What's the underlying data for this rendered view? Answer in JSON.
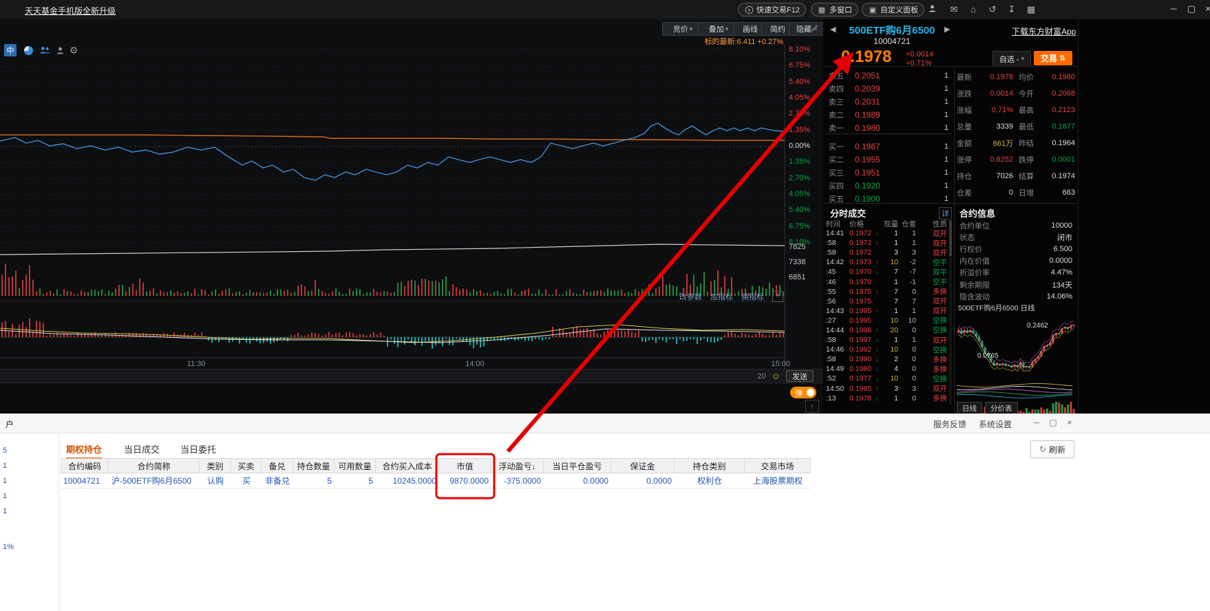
{
  "icons": {
    "close_small": "×",
    "gear": "⚙",
    "mail": "✉",
    "home": "⌂",
    "undo": "↺",
    "download": "↧",
    "smiley": "☺",
    "top": "↑",
    "caret": "▾",
    "prev": "◀",
    "next": "▶",
    "grid": "▦",
    "panel": "▣",
    "minimize": "─",
    "restore": "▢",
    "close": "×",
    "swap": "⇅",
    "refresh": "↻",
    "fullscreen": "⤢",
    "more": "»"
  },
  "titlebar": {
    "promo_link": "天天基金手机版全新升级",
    "quick_trade": "快速交易F12",
    "multi_window": "多窗口",
    "custom_panel": "自定义面板"
  },
  "chart_toolbar": {
    "bid": "竞价",
    "overlay": "叠加",
    "draw": "画线",
    "brief": "简约",
    "hide": "隐藏",
    "underlying": "标的最新:6.411 +0.27%",
    "zhong": "中"
  },
  "chart": {
    "pct_axis": [
      "8.10%",
      "6.75%",
      "5.40%",
      "4.05%",
      "2.70%",
      "1.35%",
      "0.00%",
      "1.35%",
      "2.70%",
      "4.05%",
      "5.40%",
      "6.75%",
      "8.10%"
    ],
    "vol_axis": [
      "7825",
      "7338",
      "6851"
    ],
    "time_labels": [
      "11:30",
      "14:00",
      "15:00"
    ],
    "indicator_links": [
      "改参数",
      "加指标",
      "换指标"
    ],
    "chat_count": "20",
    "send_label": "发送",
    "danmu_label": "弹",
    "series": {
      "underlying_change": [
        [
          0,
          168
        ],
        [
          100,
          168
        ],
        [
          200,
          168
        ],
        [
          300,
          169
        ],
        [
          400,
          170
        ],
        [
          470,
          171
        ],
        [
          480,
          173
        ],
        [
          560,
          173
        ],
        [
          640,
          173
        ],
        [
          720,
          174
        ],
        [
          800,
          174
        ],
        [
          880,
          175
        ],
        [
          960,
          175
        ],
        [
          1040,
          176
        ],
        [
          1140,
          176
        ]
      ],
      "option_price": [
        [
          0,
          177
        ],
        [
          22,
          172
        ],
        [
          38,
          180
        ],
        [
          55,
          176
        ],
        [
          72,
          184
        ],
        [
          92,
          181
        ],
        [
          112,
          188
        ],
        [
          132,
          184
        ],
        [
          152,
          190
        ],
        [
          172,
          186
        ],
        [
          192,
          193
        ],
        [
          212,
          190
        ],
        [
          232,
          196
        ],
        [
          252,
          193
        ],
        [
          272,
          186
        ],
        [
          292,
          190
        ],
        [
          312,
          186
        ],
        [
          332,
          200
        ],
        [
          352,
          212
        ],
        [
          366,
          206
        ],
        [
          382,
          216
        ],
        [
          396,
          212
        ],
        [
          412,
          222
        ],
        [
          426,
          218
        ],
        [
          442,
          230
        ],
        [
          458,
          234
        ],
        [
          472,
          226
        ],
        [
          486,
          230
        ],
        [
          502,
          222
        ],
        [
          516,
          226
        ],
        [
          532,
          218
        ],
        [
          546,
          222
        ],
        [
          562,
          226
        ],
        [
          576,
          222
        ],
        [
          592,
          212
        ],
        [
          606,
          216
        ],
        [
          622,
          208
        ],
        [
          636,
          212
        ],
        [
          652,
          200
        ],
        [
          666,
          204
        ],
        [
          682,
          208
        ],
        [
          696,
          204
        ],
        [
          712,
          200
        ],
        [
          726,
          204
        ],
        [
          742,
          208
        ],
        [
          756,
          204
        ],
        [
          772,
          208
        ],
        [
          786,
          200
        ],
        [
          800,
          180
        ],
        [
          816,
          184
        ],
        [
          832,
          188
        ],
        [
          846,
          184
        ],
        [
          862,
          180
        ],
        [
          876,
          184
        ],
        [
          892,
          180
        ],
        [
          906,
          176
        ],
        [
          922,
          172
        ],
        [
          936,
          166
        ],
        [
          946,
          155
        ],
        [
          956,
          151
        ],
        [
          966,
          158
        ],
        [
          976,
          164
        ],
        [
          986,
          168
        ],
        [
          996,
          160
        ],
        [
          1006,
          155
        ],
        [
          1016,
          162
        ],
        [
          1026,
          168
        ],
        [
          1036,
          162
        ],
        [
          1046,
          158
        ],
        [
          1056,
          162
        ],
        [
          1066,
          158
        ],
        [
          1076,
          162
        ],
        [
          1086,
          158
        ],
        [
          1096,
          162
        ],
        [
          1106,
          158
        ],
        [
          1116,
          160
        ],
        [
          1126,
          162
        ],
        [
          1140,
          163
        ]
      ],
      "underlying_price": [
        [
          0,
          342
        ],
        [
          100,
          341
        ],
        [
          200,
          340
        ],
        [
          300,
          339
        ],
        [
          400,
          338
        ],
        [
          480,
          337
        ],
        [
          560,
          335
        ],
        [
          640,
          334
        ],
        [
          720,
          333
        ],
        [
          800,
          331
        ],
        [
          880,
          329
        ],
        [
          960,
          327
        ],
        [
          1040,
          328
        ],
        [
          1140,
          329
        ]
      ],
      "macd_dif": [
        [
          0,
          449
        ],
        [
          60,
          453
        ],
        [
          120,
          456
        ],
        [
          180,
          457
        ],
        [
          240,
          459
        ],
        [
          300,
          462
        ],
        [
          360,
          465
        ],
        [
          420,
          464
        ],
        [
          480,
          464
        ],
        [
          540,
          467
        ],
        [
          600,
          470
        ],
        [
          660,
          467
        ],
        [
          720,
          462
        ],
        [
          780,
          456
        ],
        [
          840,
          447
        ],
        [
          900,
          444
        ],
        [
          960,
          449
        ],
        [
          1020,
          452
        ],
        [
          1080,
          451
        ],
        [
          1140,
          453
        ]
      ],
      "macd_dea": [
        [
          0,
          452
        ],
        [
          80,
          457
        ],
        [
          160,
          459
        ],
        [
          240,
          462
        ],
        [
          320,
          465
        ],
        [
          400,
          466
        ],
        [
          480,
          466
        ],
        [
          560,
          468
        ],
        [
          640,
          470
        ],
        [
          720,
          466
        ],
        [
          800,
          459
        ],
        [
          880,
          450
        ],
        [
          960,
          452
        ],
        [
          1040,
          453
        ],
        [
          1140,
          455
        ]
      ]
    },
    "volume_profile": {
      "seed": 11,
      "step": 5,
      "base_max": 9,
      "baseline": 402,
      "clusters": [
        [
          0,
          55,
          46
        ],
        [
          170,
          210,
          20
        ],
        [
          420,
          460,
          14
        ],
        [
          575,
          665,
          24
        ],
        [
          940,
          1065,
          28
        ],
        [
          1090,
          1140,
          16
        ]
      ]
    },
    "macd_hist": {
      "seed": 5,
      "step": 5,
      "baseline": 462,
      "segments": [
        [
          0,
          70,
          1,
          28
        ],
        [
          70,
          300,
          1,
          5
        ],
        [
          300,
          420,
          -1,
          8
        ],
        [
          420,
          560,
          1,
          6
        ],
        [
          560,
          730,
          -1,
          15
        ],
        [
          730,
          800,
          -1,
          4
        ],
        [
          800,
          930,
          1,
          17
        ],
        [
          930,
          1050,
          -1,
          8
        ],
        [
          1050,
          1140,
          1,
          6
        ]
      ]
    }
  },
  "quote": {
    "title": "500ETF购6月6500",
    "code": "10004721",
    "price": "0.1978",
    "change": "+0.0014",
    "change_pct": "+0.71%",
    "download_link": "下载东方财富App",
    "watchlist_btn": "自选 -",
    "trade_btn": "交易",
    "asks": [
      [
        "卖五",
        "0.2051",
        "1",
        "r"
      ],
      [
        "卖四",
        "0.2039",
        "1",
        "r"
      ],
      [
        "卖三",
        "0.2031",
        "1",
        "r"
      ],
      [
        "卖二",
        "0.1989",
        "1",
        "r"
      ],
      [
        "卖一",
        "0.1980",
        "1",
        "r"
      ]
    ],
    "bids": [
      [
        "买一",
        "0.1967",
        "1",
        "r"
      ],
      [
        "买二",
        "0.1955",
        "1",
        "r"
      ],
      [
        "买三",
        "0.1951",
        "1",
        "r"
      ],
      [
        "买四",
        "0.1920",
        "1",
        "g"
      ],
      [
        "买五",
        "0.1900",
        "1",
        "g"
      ]
    ],
    "stats": [
      [
        "最新",
        "0.1978",
        "r",
        "均价",
        "0.1980",
        "r"
      ],
      [
        "涨跌",
        "0.0014",
        "r",
        "今开",
        "0.2068",
        "r"
      ],
      [
        "涨幅",
        "0.71%",
        "r",
        "最高",
        "0.2123",
        "r"
      ],
      [
        "总量",
        "3339",
        "w",
        "最低",
        "0.1877",
        "g"
      ],
      [
        "金额",
        "661万",
        "y",
        "昨结",
        "0.1964",
        "w"
      ],
      [
        "涨停",
        "0.8252",
        "r",
        "跌停",
        "0.0001",
        "g"
      ],
      [
        "持仓",
        "7026",
        "w",
        "结算",
        "0.1974",
        "w"
      ],
      [
        "仓差",
        "0",
        "w",
        "日增",
        "663",
        "w"
      ]
    ]
  },
  "ticks": {
    "title": "分时成交",
    "detail": "详",
    "headers": [
      "时间",
      "价格",
      "现量",
      "仓差",
      "性质"
    ],
    "rows": [
      [
        "14:41",
        "0.1972",
        "d",
        "1",
        "1",
        "双开",
        "r"
      ],
      [
        ":58",
        "0.1972",
        "u",
        "1",
        "1",
        "双开",
        "r"
      ],
      [
        ":58",
        "0.1972",
        "",
        "3",
        "3",
        "双开",
        "r"
      ],
      [
        "14:42",
        "0.1973",
        "u",
        "10",
        "-2",
        "空平",
        "g"
      ],
      [
        ":45",
        "0.1970",
        "d",
        "7",
        "-7",
        "双平",
        "g"
      ],
      [
        ":46",
        "0.1970",
        "",
        "1",
        "-1",
        "空平",
        "g"
      ],
      [
        ":55",
        "0.1975",
        "u",
        "7",
        "0",
        "多换",
        "r"
      ],
      [
        ":56",
        "0.1975",
        "",
        "7",
        "7",
        "双开",
        "r"
      ],
      [
        "14:43",
        "0.1995",
        "u",
        "1",
        "1",
        "双开",
        "r"
      ],
      [
        ":27",
        "0.1995",
        "",
        "10",
        "10",
        "空换",
        "g"
      ],
      [
        "14:44",
        "0.1998",
        "u",
        "20",
        "0",
        "空换",
        "g"
      ],
      [
        ":58",
        "0.1997",
        "d",
        "1",
        "1",
        "双开",
        "r"
      ],
      [
        "14:46",
        "0.1992",
        "d",
        "10",
        "0",
        "空换",
        "g"
      ],
      [
        ":58",
        "0.1990",
        "d",
        "2",
        "0",
        "多换",
        "r"
      ],
      [
        "14:49",
        "0.1980",
        "d",
        "4",
        "0",
        "多换",
        "r"
      ],
      [
        ":52",
        "0.1977",
        "d",
        "10",
        "0",
        "空换",
        "g"
      ],
      [
        "14:50",
        "0.1985",
        "u",
        "3",
        "3",
        "双开",
        "r"
      ],
      [
        ":13",
        "0.1978",
        "d",
        "1",
        "0",
        "多换",
        "r"
      ]
    ]
  },
  "contract": {
    "title": "合约信息",
    "rows": [
      [
        "合约单位",
        "10000"
      ],
      [
        "状态",
        "闭市"
      ],
      [
        "行权价",
        "6.500"
      ],
      [
        "内在价值",
        "0.0000"
      ],
      [
        "折溢价率",
        "4.47%"
      ],
      [
        "剩余期限",
        "134天"
      ],
      [
        "隐含波动",
        "14.06%"
      ]
    ]
  },
  "mini": {
    "title": "500ETF购6月6500 日线",
    "high_label": "0.2462",
    "low_label": "0.0765",
    "tabs": [
      "日线",
      "分价表"
    ],
    "seed": 9,
    "count": 40
  },
  "bottom": {
    "corner_label": "户",
    "left_values": [
      "5",
      "1",
      "1",
      "1",
      "1",
      "1%"
    ],
    "feedback": "服务反馈",
    "settings": "系统设置",
    "refresh_label": "刷新",
    "tabs": [
      "期权持仓",
      "当日成交",
      "当日委托"
    ],
    "headers": [
      "合约编码",
      "合约简称",
      "类别",
      "买卖",
      "备兑",
      "持仓数量",
      "可用数量",
      "合约买入成本",
      "市值",
      "浮动盈亏↓",
      "当日平仓盈亏",
      "保证金",
      "持仓类别",
      "交易市场"
    ],
    "row": [
      "10004721",
      "沪-500ETF购6月6500",
      "认购",
      "买",
      "非备兑",
      "5",
      "5",
      "10245.0000",
      "9870.0000",
      "-375.0000",
      "0.0000",
      "0.0000",
      "权利仓",
      "上海股票期权"
    ]
  },
  "colors": {
    "red": "#e84040",
    "green": "#00a843",
    "orange": "#ff7e00",
    "yellow": "#cdb245",
    "cyan": "#2bb3e6",
    "value_blue": "#2456b4",
    "accent_orange": "#e05a00",
    "annotation_red": "#e60000"
  }
}
